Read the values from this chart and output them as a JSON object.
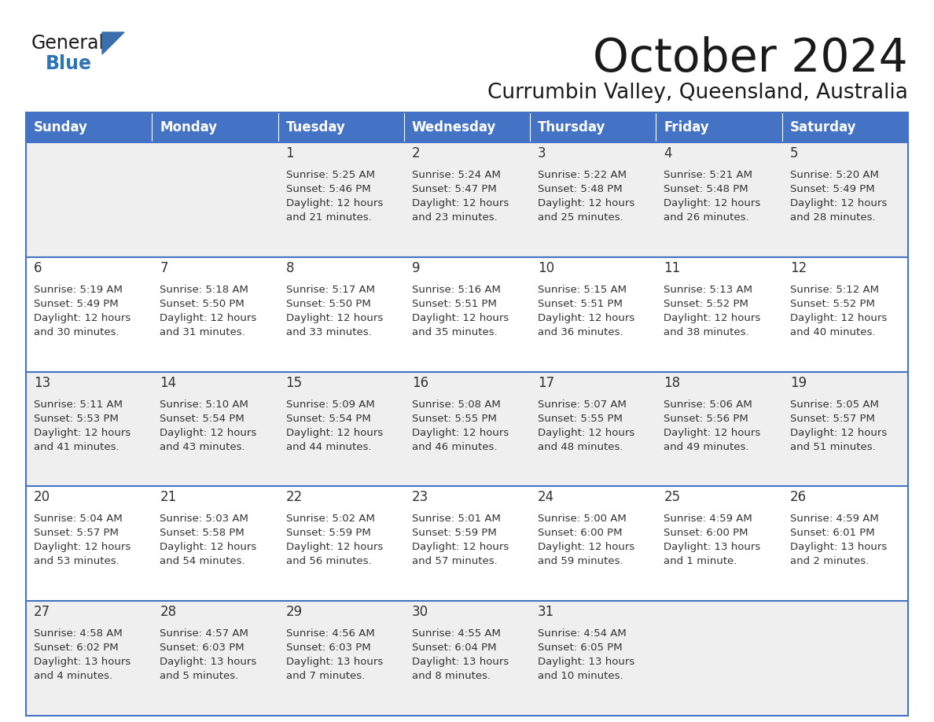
{
  "title": "October 2024",
  "subtitle": "Currumbin Valley, Queensland, Australia",
  "header_bg": "#4472C4",
  "header_text_color": "#FFFFFF",
  "row_colors": [
    "#EFEFEF",
    "#FFFFFF",
    "#EFEFEF",
    "#FFFFFF",
    "#EFEFEF"
  ],
  "border_color": "#4472C4",
  "text_color": "#333333",
  "days_of_week": [
    "Sunday",
    "Monday",
    "Tuesday",
    "Wednesday",
    "Thursday",
    "Friday",
    "Saturday"
  ],
  "calendar_data": [
    [
      {
        "day": "",
        "sunrise": "",
        "sunset": "",
        "daylight": ""
      },
      {
        "day": "",
        "sunrise": "",
        "sunset": "",
        "daylight": ""
      },
      {
        "day": "1",
        "sunrise": "Sunrise: 5:25 AM",
        "sunset": "Sunset: 5:46 PM",
        "daylight": "Daylight: 12 hours\nand 21 minutes."
      },
      {
        "day": "2",
        "sunrise": "Sunrise: 5:24 AM",
        "sunset": "Sunset: 5:47 PM",
        "daylight": "Daylight: 12 hours\nand 23 minutes."
      },
      {
        "day": "3",
        "sunrise": "Sunrise: 5:22 AM",
        "sunset": "Sunset: 5:48 PM",
        "daylight": "Daylight: 12 hours\nand 25 minutes."
      },
      {
        "day": "4",
        "sunrise": "Sunrise: 5:21 AM",
        "sunset": "Sunset: 5:48 PM",
        "daylight": "Daylight: 12 hours\nand 26 minutes."
      },
      {
        "day": "5",
        "sunrise": "Sunrise: 5:20 AM",
        "sunset": "Sunset: 5:49 PM",
        "daylight": "Daylight: 12 hours\nand 28 minutes."
      }
    ],
    [
      {
        "day": "6",
        "sunrise": "Sunrise: 5:19 AM",
        "sunset": "Sunset: 5:49 PM",
        "daylight": "Daylight: 12 hours\nand 30 minutes."
      },
      {
        "day": "7",
        "sunrise": "Sunrise: 5:18 AM",
        "sunset": "Sunset: 5:50 PM",
        "daylight": "Daylight: 12 hours\nand 31 minutes."
      },
      {
        "day": "8",
        "sunrise": "Sunrise: 5:17 AM",
        "sunset": "Sunset: 5:50 PM",
        "daylight": "Daylight: 12 hours\nand 33 minutes."
      },
      {
        "day": "9",
        "sunrise": "Sunrise: 5:16 AM",
        "sunset": "Sunset: 5:51 PM",
        "daylight": "Daylight: 12 hours\nand 35 minutes."
      },
      {
        "day": "10",
        "sunrise": "Sunrise: 5:15 AM",
        "sunset": "Sunset: 5:51 PM",
        "daylight": "Daylight: 12 hours\nand 36 minutes."
      },
      {
        "day": "11",
        "sunrise": "Sunrise: 5:13 AM",
        "sunset": "Sunset: 5:52 PM",
        "daylight": "Daylight: 12 hours\nand 38 minutes."
      },
      {
        "day": "12",
        "sunrise": "Sunrise: 5:12 AM",
        "sunset": "Sunset: 5:52 PM",
        "daylight": "Daylight: 12 hours\nand 40 minutes."
      }
    ],
    [
      {
        "day": "13",
        "sunrise": "Sunrise: 5:11 AM",
        "sunset": "Sunset: 5:53 PM",
        "daylight": "Daylight: 12 hours\nand 41 minutes."
      },
      {
        "day": "14",
        "sunrise": "Sunrise: 5:10 AM",
        "sunset": "Sunset: 5:54 PM",
        "daylight": "Daylight: 12 hours\nand 43 minutes."
      },
      {
        "day": "15",
        "sunrise": "Sunrise: 5:09 AM",
        "sunset": "Sunset: 5:54 PM",
        "daylight": "Daylight: 12 hours\nand 44 minutes."
      },
      {
        "day": "16",
        "sunrise": "Sunrise: 5:08 AM",
        "sunset": "Sunset: 5:55 PM",
        "daylight": "Daylight: 12 hours\nand 46 minutes."
      },
      {
        "day": "17",
        "sunrise": "Sunrise: 5:07 AM",
        "sunset": "Sunset: 5:55 PM",
        "daylight": "Daylight: 12 hours\nand 48 minutes."
      },
      {
        "day": "18",
        "sunrise": "Sunrise: 5:06 AM",
        "sunset": "Sunset: 5:56 PM",
        "daylight": "Daylight: 12 hours\nand 49 minutes."
      },
      {
        "day": "19",
        "sunrise": "Sunrise: 5:05 AM",
        "sunset": "Sunset: 5:57 PM",
        "daylight": "Daylight: 12 hours\nand 51 minutes."
      }
    ],
    [
      {
        "day": "20",
        "sunrise": "Sunrise: 5:04 AM",
        "sunset": "Sunset: 5:57 PM",
        "daylight": "Daylight: 12 hours\nand 53 minutes."
      },
      {
        "day": "21",
        "sunrise": "Sunrise: 5:03 AM",
        "sunset": "Sunset: 5:58 PM",
        "daylight": "Daylight: 12 hours\nand 54 minutes."
      },
      {
        "day": "22",
        "sunrise": "Sunrise: 5:02 AM",
        "sunset": "Sunset: 5:59 PM",
        "daylight": "Daylight: 12 hours\nand 56 minutes."
      },
      {
        "day": "23",
        "sunrise": "Sunrise: 5:01 AM",
        "sunset": "Sunset: 5:59 PM",
        "daylight": "Daylight: 12 hours\nand 57 minutes."
      },
      {
        "day": "24",
        "sunrise": "Sunrise: 5:00 AM",
        "sunset": "Sunset: 6:00 PM",
        "daylight": "Daylight: 12 hours\nand 59 minutes."
      },
      {
        "day": "25",
        "sunrise": "Sunrise: 4:59 AM",
        "sunset": "Sunset: 6:00 PM",
        "daylight": "Daylight: 13 hours\nand 1 minute."
      },
      {
        "day": "26",
        "sunrise": "Sunrise: 4:59 AM",
        "sunset": "Sunset: 6:01 PM",
        "daylight": "Daylight: 13 hours\nand 2 minutes."
      }
    ],
    [
      {
        "day": "27",
        "sunrise": "Sunrise: 4:58 AM",
        "sunset": "Sunset: 6:02 PM",
        "daylight": "Daylight: 13 hours\nand 4 minutes."
      },
      {
        "day": "28",
        "sunrise": "Sunrise: 4:57 AM",
        "sunset": "Sunset: 6:03 PM",
        "daylight": "Daylight: 13 hours\nand 5 minutes."
      },
      {
        "day": "29",
        "sunrise": "Sunrise: 4:56 AM",
        "sunset": "Sunset: 6:03 PM",
        "daylight": "Daylight: 13 hours\nand 7 minutes."
      },
      {
        "day": "30",
        "sunrise": "Sunrise: 4:55 AM",
        "sunset": "Sunset: 6:04 PM",
        "daylight": "Daylight: 13 hours\nand 8 minutes."
      },
      {
        "day": "31",
        "sunrise": "Sunrise: 4:54 AM",
        "sunset": "Sunset: 6:05 PM",
        "daylight": "Daylight: 13 hours\nand 10 minutes."
      },
      {
        "day": "",
        "sunrise": "",
        "sunset": "",
        "daylight": ""
      },
      {
        "day": "",
        "sunrise": "",
        "sunset": "",
        "daylight": ""
      }
    ]
  ]
}
